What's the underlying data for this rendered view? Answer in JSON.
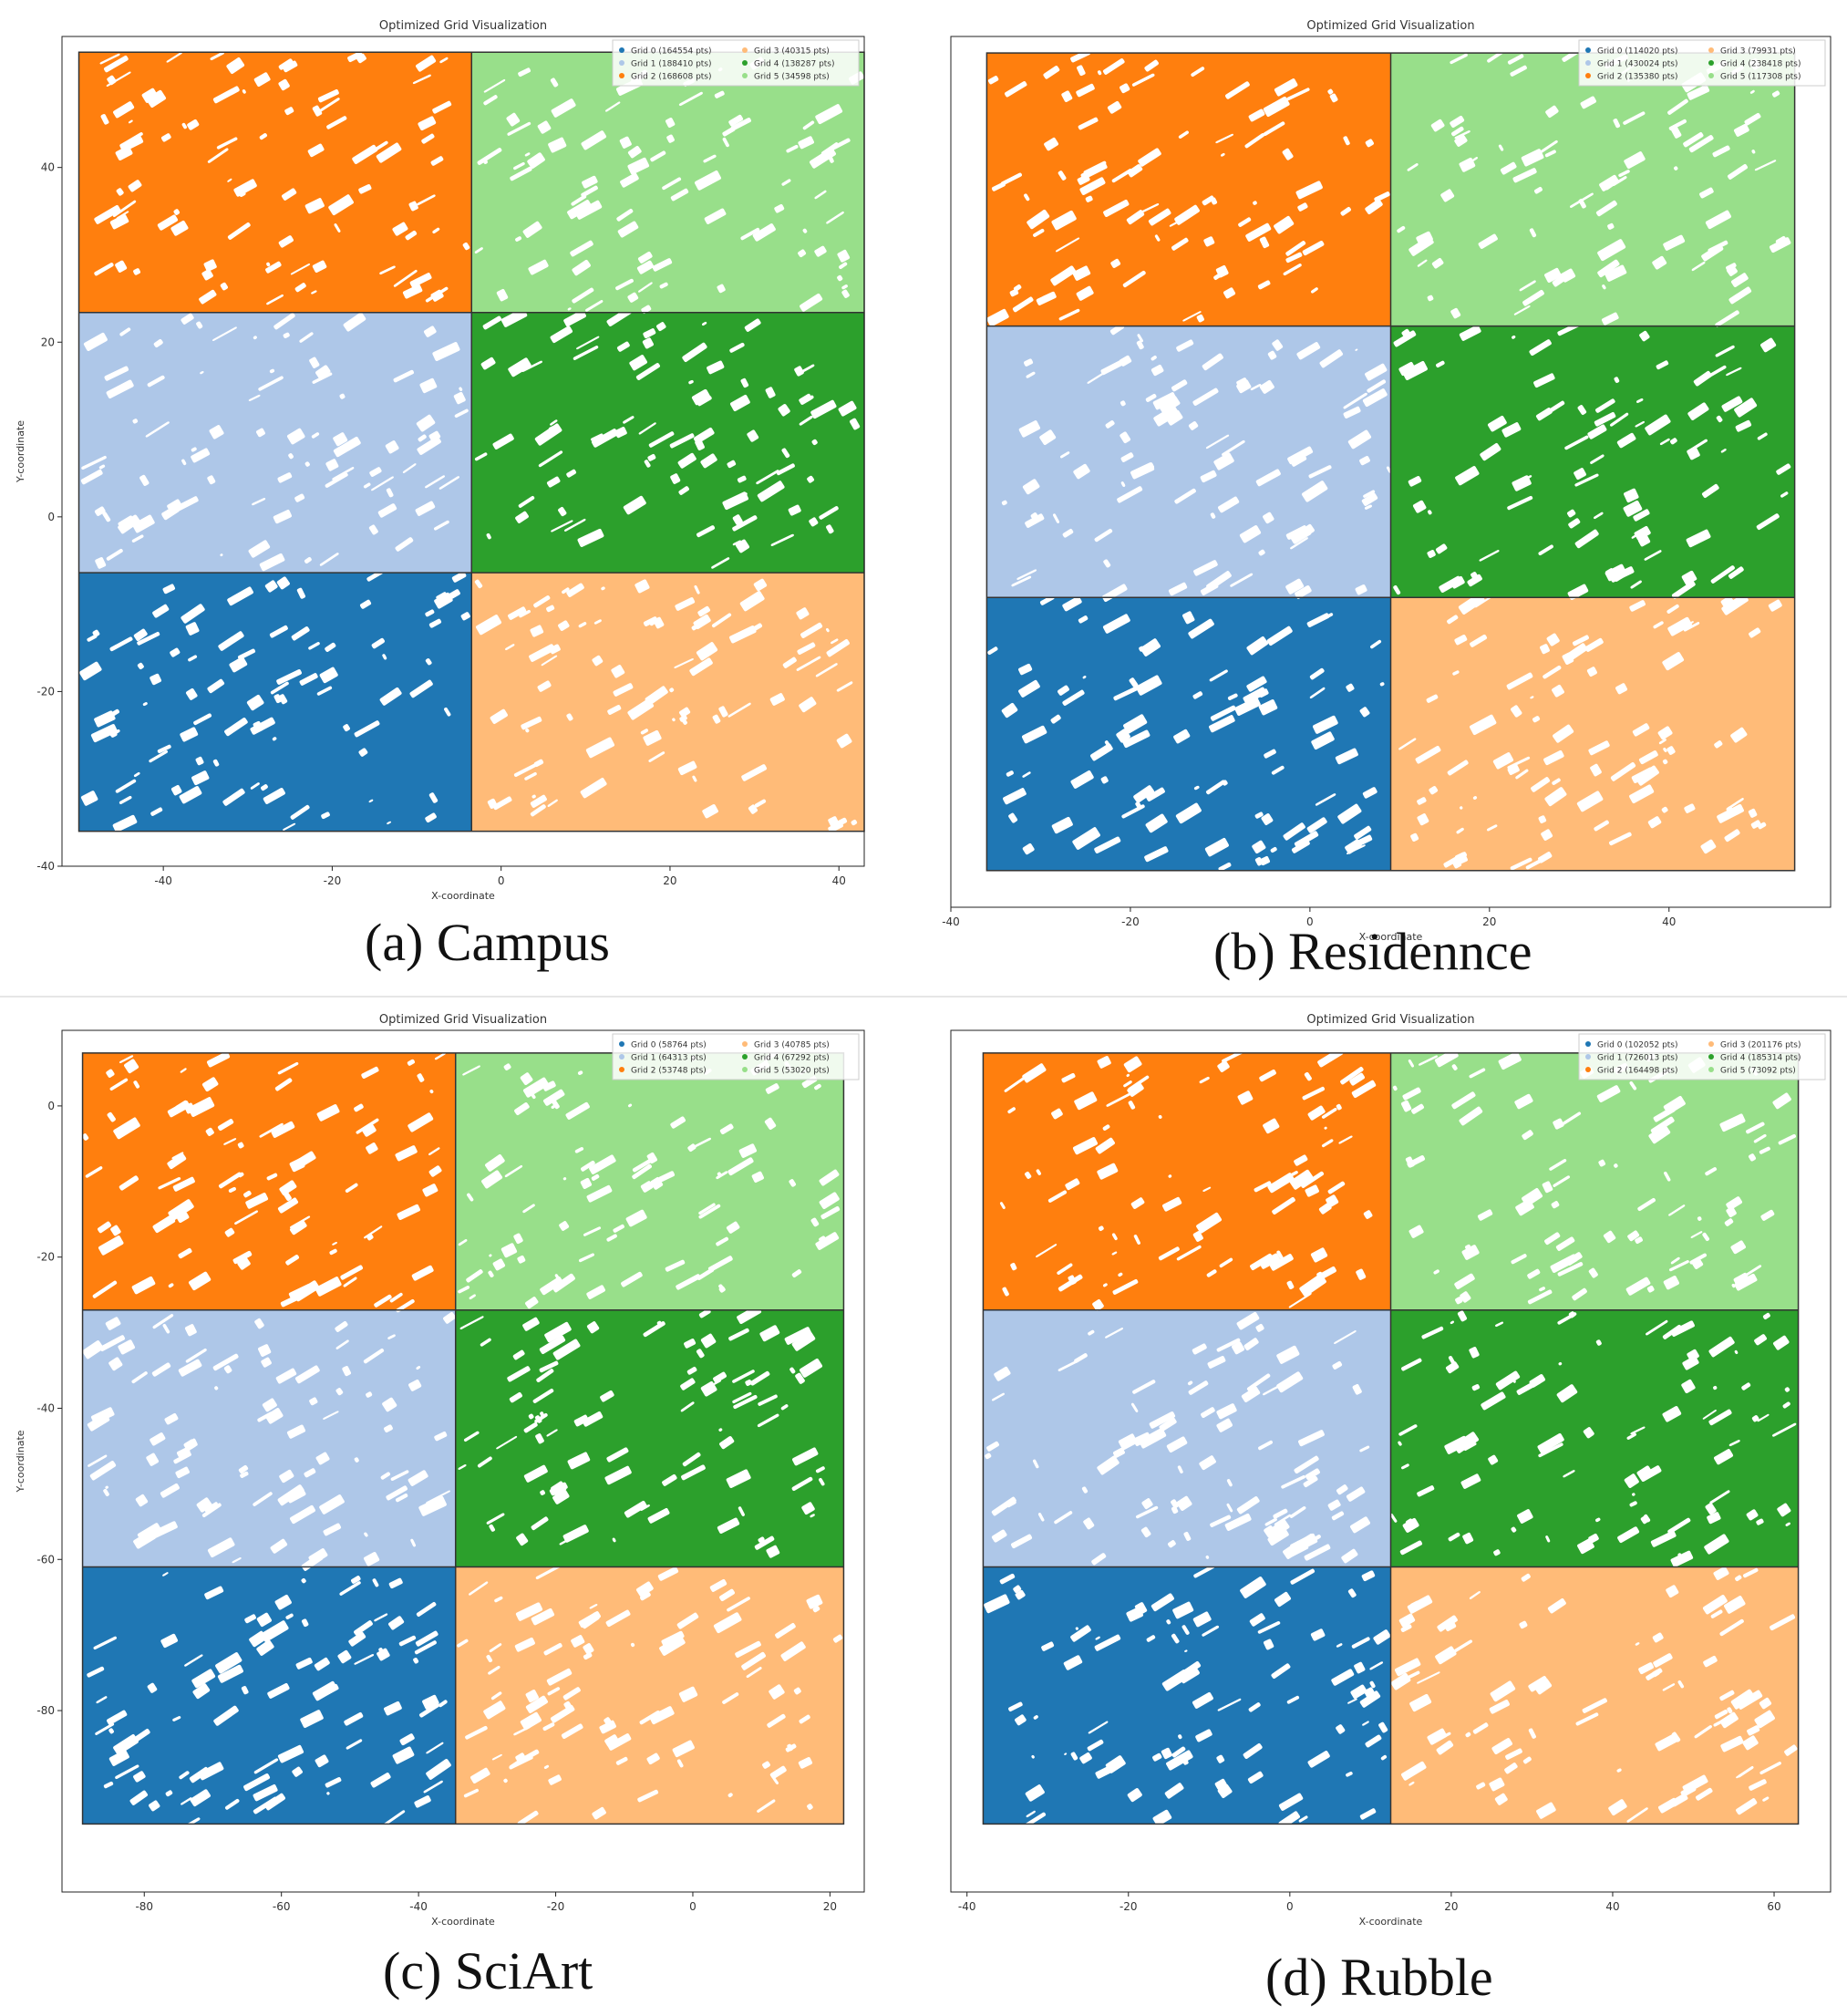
{
  "colors": {
    "grid0": "#1f77b4",
    "grid1": "#aec7e8",
    "grid2": "#ff7f0e",
    "grid3": "#ffbb78",
    "grid4": "#2ca02c",
    "grid5": "#98df8a"
  },
  "chart_data": [
    {
      "type": "scatter",
      "title": "Optimized Grid Visualization",
      "xlabel": "X-coordinate",
      "ylabel": "Y-coordinate",
      "caption": "(a) Campus",
      "xlim": [
        -52,
        43
      ],
      "ylim": [
        -40,
        55
      ],
      "xticks": [
        -40,
        -20,
        0,
        20,
        40
      ],
      "yticks": [
        -40,
        -20,
        0,
        20,
        40
      ],
      "grid": false,
      "legend_position": "top-right",
      "x_bounds": [
        -50,
        -3.5,
        43
      ],
      "y_bounds": [
        -36,
        -6.4,
        23.4,
        53.2
      ],
      "series": [
        {
          "name": "Grid 0 (164554 pts)",
          "color": "grid0",
          "cell": [
            0,
            0
          ]
        },
        {
          "name": "Grid 1 (188410 pts)",
          "color": "grid1",
          "cell": [
            0,
            1
          ]
        },
        {
          "name": "Grid 2 (168608 pts)",
          "color": "grid2",
          "cell": [
            0,
            2
          ]
        },
        {
          "name": "Grid 3 (40315 pts)",
          "color": "grid3",
          "cell": [
            1,
            0
          ]
        },
        {
          "name": "Grid 4 (138287 pts)",
          "color": "grid4",
          "cell": [
            1,
            1
          ]
        },
        {
          "name": "Grid 5 (34598 pts)",
          "color": "grid5",
          "cell": [
            1,
            2
          ]
        }
      ]
    },
    {
      "type": "scatter",
      "title": "Optimized Grid Visualization",
      "xlabel": "X-coordinate",
      "ylabel": "",
      "caption": "(b) Residennce",
      "xlim": [
        -40,
        58
      ],
      "ylim": [
        -40,
        55
      ],
      "xticks": [
        -40,
        -20,
        0,
        20,
        40
      ],
      "yticks": [],
      "grid": false,
      "legend_position": "top-right",
      "x_bounds": [
        -36,
        9,
        54
      ],
      "y_bounds": [
        -36,
        -6.2,
        23.4,
        53.2
      ],
      "series": [
        {
          "name": "Grid 0 (114020 pts)",
          "color": "grid0",
          "cell": [
            0,
            0
          ]
        },
        {
          "name": "Grid 1 (430024 pts)",
          "color": "grid1",
          "cell": [
            0,
            1
          ]
        },
        {
          "name": "Grid 2 (135380 pts)",
          "color": "grid2",
          "cell": [
            0,
            2
          ]
        },
        {
          "name": "Grid 3 (79931 pts)",
          "color": "grid3",
          "cell": [
            1,
            0
          ]
        },
        {
          "name": "Grid 4 (238418 pts)",
          "color": "grid4",
          "cell": [
            1,
            1
          ]
        },
        {
          "name": "Grid 5 (117308 pts)",
          "color": "grid5",
          "cell": [
            1,
            2
          ]
        }
      ]
    },
    {
      "type": "scatter",
      "title": "Optimized Grid Visualization",
      "xlabel": "X-coordinate",
      "ylabel": "Y-coordinate",
      "caption": "(c) SciArt",
      "xlim": [
        -92,
        25
      ],
      "ylim": [
        -104,
        10
      ],
      "xticks": [
        -80,
        -60,
        -40,
        -20,
        0,
        20
      ],
      "yticks": [
        -80,
        -60,
        -40,
        -20,
        0
      ],
      "grid": false,
      "legend_position": "top-right",
      "x_bounds": [
        -89,
        -34.6,
        22
      ],
      "y_bounds": [
        -95,
        -61,
        -27,
        7
      ],
      "series": [
        {
          "name": "Grid 0 (58764 pts)",
          "color": "grid0",
          "cell": [
            0,
            0
          ]
        },
        {
          "name": "Grid 1 (64313 pts)",
          "color": "grid1",
          "cell": [
            0,
            1
          ]
        },
        {
          "name": "Grid 2 (53748 pts)",
          "color": "grid2",
          "cell": [
            0,
            2
          ]
        },
        {
          "name": "Grid 3 (40785 pts)",
          "color": "grid3",
          "cell": [
            1,
            0
          ]
        },
        {
          "name": "Grid 4 (67292 pts)",
          "color": "grid4",
          "cell": [
            1,
            1
          ]
        },
        {
          "name": "Grid 5 (53020 pts)",
          "color": "grid5",
          "cell": [
            1,
            2
          ]
        }
      ]
    },
    {
      "type": "scatter",
      "title": "Optimized Grid Visualization",
      "xlabel": "X-coordinate",
      "ylabel": "",
      "caption": "(d) Rubble",
      "xlim": [
        -42,
        67
      ],
      "ylim": [
        -104,
        10
      ],
      "xticks": [
        -40,
        -20,
        0,
        20,
        40,
        60
      ],
      "yticks": [],
      "grid": false,
      "legend_position": "top-right",
      "x_bounds": [
        -38,
        12.5,
        63
      ],
      "y_bounds": [
        -95,
        -61,
        -27,
        7
      ],
      "series": [
        {
          "name": "Grid 0 (102052 pts)",
          "color": "grid0",
          "cell": [
            0,
            0
          ]
        },
        {
          "name": "Grid 1 (726013 pts)",
          "color": "grid1",
          "cell": [
            0,
            1
          ]
        },
        {
          "name": "Grid 2 (164498 pts)",
          "color": "grid2",
          "cell": [
            0,
            2
          ]
        },
        {
          "name": "Grid 3 (201176 pts)",
          "color": "grid3",
          "cell": [
            1,
            0
          ]
        },
        {
          "name": "Grid 4 (185314 pts)",
          "color": "grid4",
          "cell": [
            1,
            1
          ]
        },
        {
          "name": "Grid 5 (73092 pts)",
          "color": "grid5",
          "cell": [
            1,
            2
          ]
        }
      ]
    }
  ]
}
